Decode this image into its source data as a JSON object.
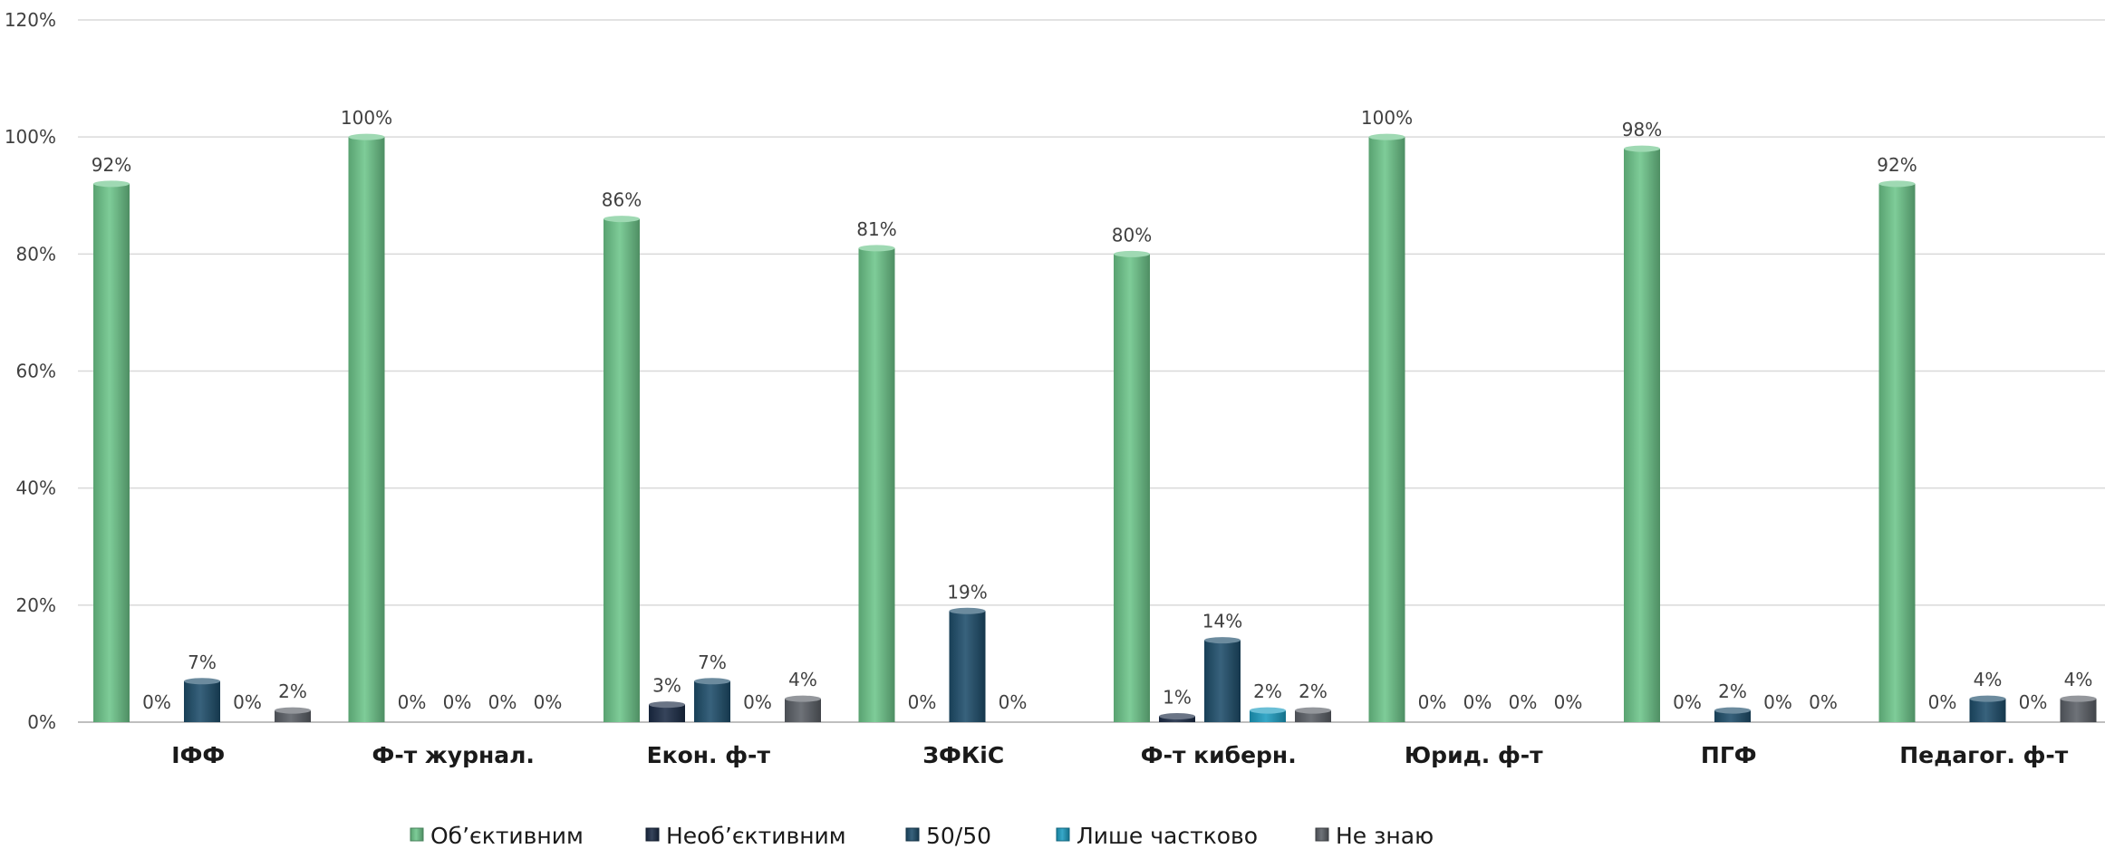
{
  "chart_data": {
    "type": "bar",
    "title": "",
    "xlabel": "",
    "ylabel": "",
    "ylim": [
      0,
      120
    ],
    "y_ticks": [
      "0%",
      "20%",
      "40%",
      "60%",
      "80%",
      "100%",
      "120%"
    ],
    "grid": true,
    "legend_position": "bottom",
    "categories": [
      "ІФФ",
      "Ф-т журнал.",
      "Екон. ф-т",
      "ЗФКіС",
      "Ф-т киберн.",
      "Юрид. ф-т",
      "ПГФ",
      "Педагог. ф-т"
    ],
    "series": [
      {
        "name": "Об’єктивним",
        "color": "#6cc58a",
        "values": [
          92,
          100,
          86,
          81,
          80,
          100,
          98,
          92
        ],
        "labels": [
          "92%",
          "100%",
          "86%",
          "81%",
          "80%",
          "100%",
          "98%",
          "92%"
        ]
      },
      {
        "name": "Необ’єктивним",
        "color": "#1b2b45",
        "values": [
          0,
          0,
          3,
          0,
          1,
          0,
          0,
          0
        ],
        "labels": [
          "0%",
          "0%",
          "3%",
          "0%",
          "1%",
          "0%",
          "0%",
          "0%"
        ]
      },
      {
        "name": "50/50",
        "color": "#1d4d6a",
        "values": [
          7,
          0,
          7,
          19,
          14,
          0,
          2,
          4
        ],
        "labels": [
          "7%",
          "0%",
          "7%",
          "19%",
          "14%",
          "0%",
          "2%",
          "4%"
        ]
      },
      {
        "name": "Лише частково",
        "color": "#1c9cc0",
        "values": [
          0,
          0,
          0,
          0,
          2,
          0,
          0,
          0
        ],
        "labels": [
          "0%",
          "0%",
          "0%",
          "0%",
          "2%",
          "0%",
          "0%",
          "0%"
        ]
      },
      {
        "name": "Не знаю",
        "color": "#5a5f66",
        "values": [
          2,
          0,
          4,
          0,
          2,
          0,
          0,
          4
        ],
        "labels": [
          "2%",
          "0%",
          "4%",
          "",
          "2%",
          "0%",
          "0%",
          "4%"
        ]
      }
    ]
  }
}
